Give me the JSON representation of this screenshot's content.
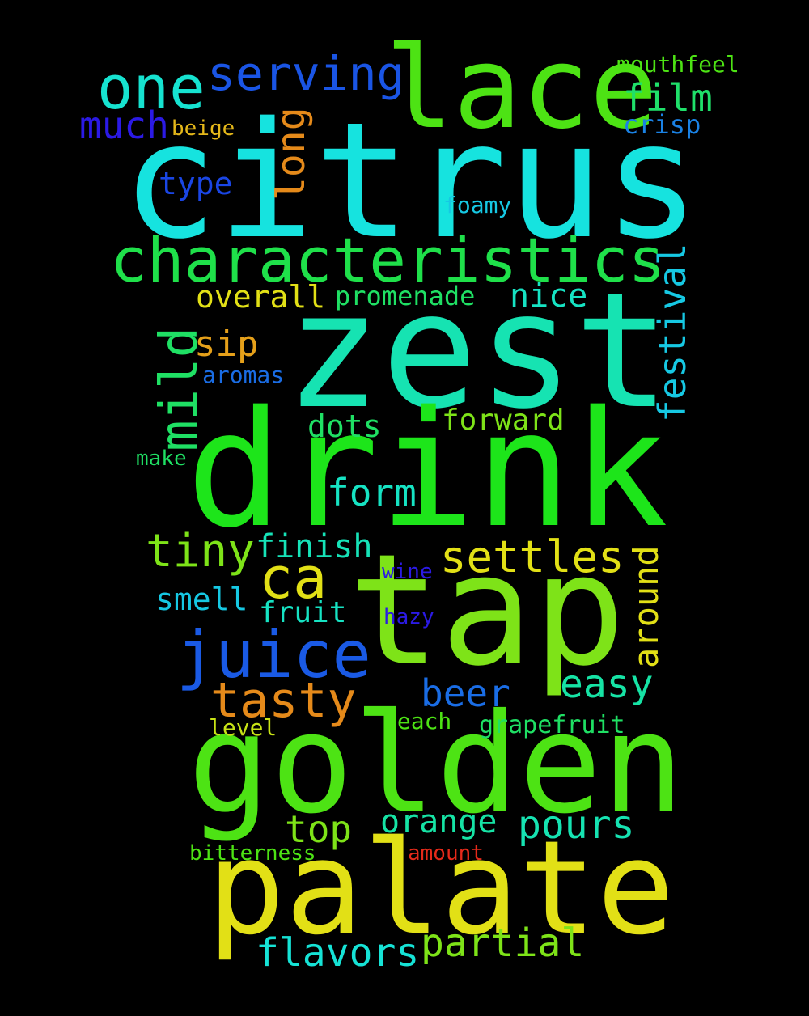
{
  "background": "#000000",
  "words": [
    {
      "text": "citrus",
      "color": "#16e3df"
    },
    {
      "text": "zest",
      "color": "#16e3b2"
    },
    {
      "text": "drink",
      "color": "#1de51a"
    },
    {
      "text": "tap",
      "color": "#7ee318"
    },
    {
      "text": "golden",
      "color": "#4de314"
    },
    {
      "text": "palate",
      "color": "#e2e016"
    },
    {
      "text": "lace",
      "color": "#4de314"
    },
    {
      "text": "characteristics",
      "color": "#1fe04a"
    },
    {
      "text": "juice",
      "color": "#1a5ae5"
    },
    {
      "text": "one",
      "color": "#16e3d0"
    },
    {
      "text": "serving",
      "color": "#1a55e5"
    },
    {
      "text": "mild",
      "color": "#1fe064"
    },
    {
      "text": "ca",
      "color": "#e2e016"
    },
    {
      "text": "settles",
      "color": "#e2e016"
    },
    {
      "text": "tasty",
      "color": "#e58a1a"
    },
    {
      "text": "tiny",
      "color": "#7ee318"
    },
    {
      "text": "film",
      "color": "#1fe06a"
    },
    {
      "text": "much",
      "color": "#2b1ae5"
    },
    {
      "text": "long",
      "color": "#e58a1a"
    },
    {
      "text": "festival",
      "color": "#16c8e3"
    },
    {
      "text": "around",
      "color": "#e2e016"
    },
    {
      "text": "form",
      "color": "#16e3c3"
    },
    {
      "text": "beer",
      "color": "#1a6de5"
    },
    {
      "text": "easy",
      "color": "#16e3a5"
    },
    {
      "text": "pours",
      "color": "#16e3b2"
    },
    {
      "text": "partial",
      "color": "#7ee318"
    },
    {
      "text": "flavors",
      "color": "#16e3d6"
    },
    {
      "text": "top",
      "color": "#7ee318"
    },
    {
      "text": "orange",
      "color": "#16e3a5"
    },
    {
      "text": "nice",
      "color": "#16e3c3"
    },
    {
      "text": "overall",
      "color": "#e2e016"
    },
    {
      "text": "sip",
      "color": "#e5a01a"
    },
    {
      "text": "finish",
      "color": "#16e3b8"
    },
    {
      "text": "smell",
      "color": "#16c8e3"
    },
    {
      "text": "fruit",
      "color": "#16e3c3"
    },
    {
      "text": "dots",
      "color": "#1fe064"
    },
    {
      "text": "forward",
      "color": "#7ee318"
    },
    {
      "text": "type",
      "color": "#1a46e5"
    },
    {
      "text": "crisp",
      "color": "#1a82e5"
    },
    {
      "text": "mouthfeel",
      "color": "#4de314"
    },
    {
      "text": "promenade",
      "color": "#1fe064"
    },
    {
      "text": "foamy",
      "color": "#16c8e3"
    },
    {
      "text": "aromas",
      "color": "#1a6de5"
    },
    {
      "text": "beige",
      "color": "#e5b81a"
    },
    {
      "text": "make",
      "color": "#1fe064"
    },
    {
      "text": "grapefruit",
      "color": "#1fe064"
    },
    {
      "text": "beach",
      "color": "#4de314"
    },
    {
      "text": "level",
      "color": "#c8e316"
    },
    {
      "text": "bitterness",
      "color": "#4de314"
    },
    {
      "text": "amount",
      "color": "#e52a1a"
    },
    {
      "text": "wine",
      "color": "#2b1ae5"
    },
    {
      "text": "hazy",
      "color": "#2b1ae5"
    }
  ]
}
